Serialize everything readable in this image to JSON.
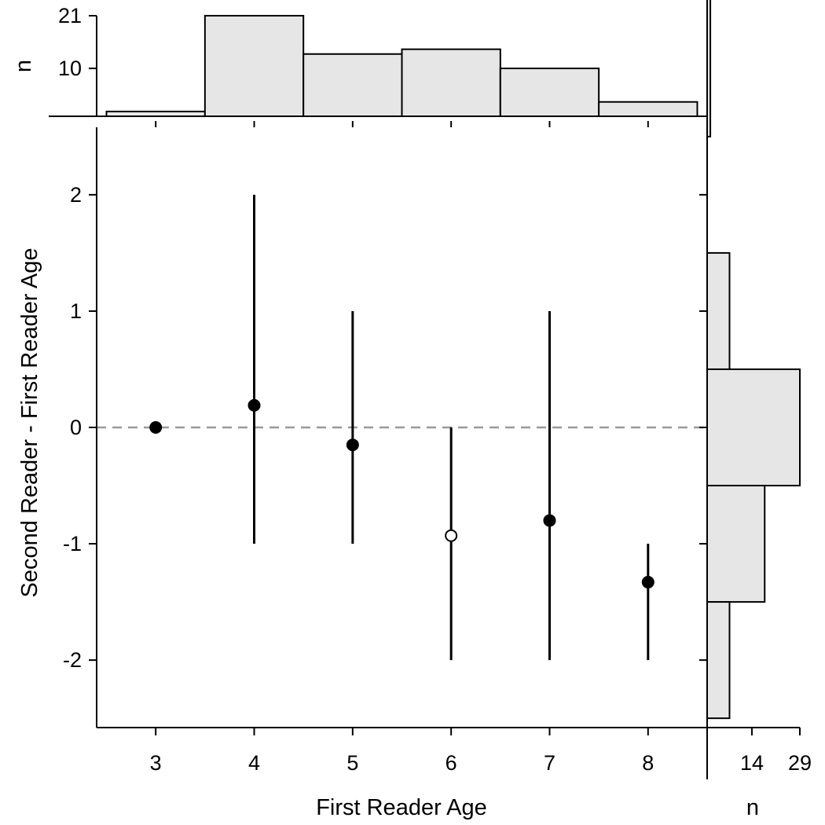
{
  "colors": {
    "axis": "#000000",
    "bar_fill": "#e6e6e6",
    "bar_stroke": "#000000",
    "reference_line": "#999999",
    "point_filled": "#000000",
    "point_open": "#ffffff"
  },
  "chart_data": {
    "type": "scatter",
    "xlabel": "First Reader Age",
    "ylabel": "Second Reader - First Reader Age",
    "xlim": [
      2.4,
      8.6
    ],
    "ylim": [
      -2.58,
      2.58
    ],
    "x_ticks": [
      3,
      4,
      5,
      6,
      7,
      8
    ],
    "y_ticks": [
      -2,
      -1,
      0,
      1,
      2
    ],
    "reference_line": {
      "y": 0,
      "style": "dashed"
    },
    "grid": false,
    "legend": "none",
    "points": [
      {
        "x": 3,
        "y": 0.0,
        "low": 0,
        "high": 0,
        "marker": "filled"
      },
      {
        "x": 4,
        "y": 0.19,
        "low": -1,
        "high": 2,
        "marker": "filled"
      },
      {
        "x": 5,
        "y": -0.15,
        "low": -1,
        "high": 1,
        "marker": "filled"
      },
      {
        "x": 6,
        "y": -0.93,
        "low": -2,
        "high": 0,
        "marker": "open"
      },
      {
        "x": 7,
        "y": -0.8,
        "low": -2,
        "high": 1,
        "marker": "filled"
      },
      {
        "x": 8,
        "y": -1.33,
        "low": -2,
        "high": -1,
        "marker": "filled"
      }
    ],
    "top_histogram": {
      "ylabel": "n",
      "y_ticks": [
        10,
        21
      ],
      "ylim": [
        0,
        21
      ],
      "categories": [
        3,
        4,
        5,
        6,
        7,
        8
      ],
      "values": [
        1,
        21,
        13,
        14,
        10,
        3
      ]
    },
    "right_histogram": {
      "xlabel": "n",
      "x_ticks": [
        14,
        29
      ],
      "xlim": [
        0,
        29
      ],
      "bins": [
        {
          "y_low": 2.5,
          "y_high": 2.5,
          "count": 1
        },
        {
          "y_low": 0.5,
          "y_high": 1.5,
          "count": 7
        },
        {
          "y_low": -0.5,
          "y_high": 0.5,
          "count": 29
        },
        {
          "y_low": -1.5,
          "y_high": -0.5,
          "count": 18
        },
        {
          "y_low": -2.5,
          "y_high": -1.5,
          "count": 7
        }
      ]
    }
  }
}
